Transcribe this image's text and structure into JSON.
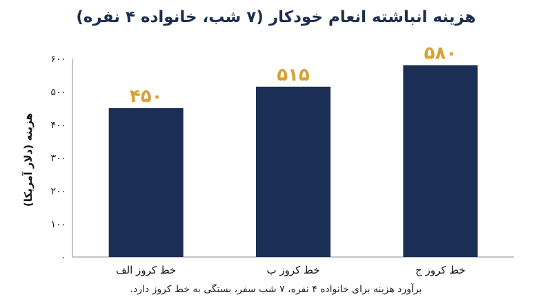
{
  "chart_data": {
    "type": "bar",
    "title": "هزینه انباشته انعام خودکار (۷ شب، خانواده ۴ نفره)",
    "ylabel": "هزینه (دلار آمریکا)",
    "xlabel": "",
    "categories": [
      "خط کروز الف",
      "خط کروز ب",
      "خط کروز ج"
    ],
    "values": [
      450,
      515,
      580
    ],
    "data_labels": [
      "۴۵۰",
      "۵۱۵",
      "۵۸۰"
    ],
    "ylim": [
      0,
      600
    ],
    "yticks": [
      0,
      100,
      200,
      300,
      400,
      500,
      600
    ],
    "ytick_labels": [
      "۰",
      "۱۰۰",
      "۲۰۰",
      "۳۰۰",
      "۴۰۰",
      "۵۰۰",
      "۶۰۰"
    ],
    "grid": false,
    "legend": "none",
    "colors": {
      "bar": "#1b2e55",
      "data_label": "#d9a034",
      "axis": "#8a8a8a"
    },
    "footnote": "برآورد هزینه برای خانواده ۴ نفره، ۷ شب سفر، بستگی به خط کروز دارد."
  }
}
